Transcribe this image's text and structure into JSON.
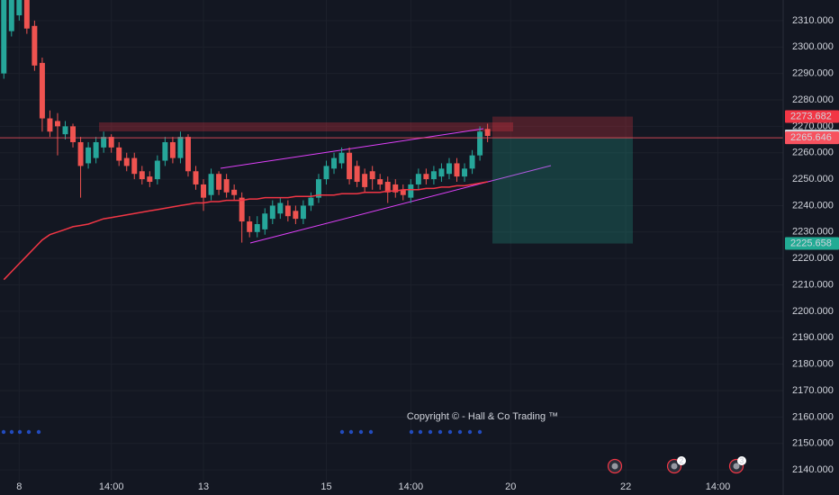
{
  "chart_data": {
    "type": "candlestick",
    "watermark": "Copyright © - Hall & Co Trading ™",
    "up_color": "#26a69a",
    "down_color": "#ef5350",
    "grid": true,
    "ylim": [
      2135.6,
      2317.8
    ],
    "yticks": [
      {
        "value": 2140,
        "label": "2140.000"
      },
      {
        "value": 2150,
        "label": "2150.000"
      },
      {
        "value": 2160,
        "label": "2160.000"
      },
      {
        "value": 2170,
        "label": "2170.000"
      },
      {
        "value": 2180,
        "label": "2180.000"
      },
      {
        "value": 2190,
        "label": "2190.000"
      },
      {
        "value": 2200,
        "label": "2200.000"
      },
      {
        "value": 2210,
        "label": "2210.000"
      },
      {
        "value": 2220,
        "label": "2220.000"
      },
      {
        "value": 2230,
        "label": "2230.000"
      },
      {
        "value": 2240,
        "label": "2240.000"
      },
      {
        "value": 2250,
        "label": "2250.000"
      },
      {
        "value": 2260,
        "label": "2260.000"
      },
      {
        "value": 2270,
        "label": "2270.000"
      },
      {
        "value": 2280,
        "label": "2280.000"
      },
      {
        "value": 2290,
        "label": "2290.000"
      },
      {
        "value": 2300,
        "label": "2300.000"
      },
      {
        "value": 2310,
        "label": "2310.000"
      }
    ],
    "categories": [
      null,
      null,
      "8",
      null,
      null,
      null,
      null,
      null,
      null,
      null,
      null,
      null,
      null,
      null,
      "14:00",
      null,
      null,
      null,
      null,
      null,
      null,
      null,
      null,
      null,
      null,
      null,
      "13",
      null,
      null,
      null,
      null,
      null,
      null,
      null,
      null,
      null,
      null,
      null,
      null,
      null,
      null,
      null,
      "15",
      null,
      null,
      null,
      null,
      null,
      null,
      null,
      null,
      null,
      null,
      "14:00",
      null,
      null,
      null,
      null,
      null,
      null,
      null,
      null,
      null,
      null,
      null,
      null,
      "20",
      null,
      null,
      null,
      null,
      null,
      null,
      null,
      null,
      null,
      null,
      null,
      null,
      null,
      null,
      "22",
      null,
      null,
      null,
      null,
      null,
      null,
      null,
      null,
      null,
      null,
      null,
      "14:00",
      null,
      null,
      null,
      null,
      null,
      null,
      null,
      null
    ],
    "open": [
      2290,
      2306,
      2312,
      2318,
      2308,
      2294,
      2273,
      2272,
      2267,
      2270,
      2264,
      2256,
      2258,
      2262,
      2266,
      2262,
      2258,
      2258,
      2253,
      2251,
      2250,
      2257,
      2264,
      2258,
      2266,
      2253,
      2248,
      2244,
      2252,
      2250,
      2246,
      2243,
      2234,
      2230,
      2231,
      2235,
      2237,
      2240,
      2238,
      2235,
      2240,
      2243,
      2250,
      2254,
      2256,
      2260,
      2255,
      2252,
      2253,
      2250,
      2249,
      2248,
      2246,
      2243,
      2248,
      2252,
      2250,
      2251,
      2252,
      2256,
      2251,
      2254,
      2259,
      2269,
      null,
      null,
      null,
      null,
      null,
      null,
      null,
      null,
      null,
      null,
      null,
      null,
      null,
      null,
      null,
      null,
      null,
      null,
      null,
      null,
      null,
      null,
      null,
      null,
      null,
      null,
      null,
      null,
      null,
      null,
      null,
      null,
      null,
      null,
      null,
      null,
      null,
      null
    ],
    "high": [
      2320,
      2320,
      2320,
      2320,
      2310,
      2296,
      2276,
      2275,
      2272,
      2271,
      2266,
      2264,
      2266,
      2268,
      2267,
      2264,
      2260,
      2260,
      2255,
      2253,
      2259,
      2266,
      2266,
      2268,
      2267,
      2255,
      2250,
      2254,
      2253,
      2252,
      2248,
      2245,
      2236,
      2236,
      2239,
      2242,
      2243,
      2242,
      2240,
      2242,
      2245,
      2252,
      2257,
      2260,
      2262,
      2262,
      2257,
      2254,
      2255,
      2252,
      2251,
      2250,
      2248,
      2250,
      2254,
      2254,
      2255,
      2256,
      2258,
      2258,
      2256,
      2261,
      2270,
      2271,
      null,
      null,
      null,
      null,
      null,
      null,
      null,
      null,
      null,
      null,
      null,
      null,
      null,
      null,
      null,
      null,
      null,
      null,
      null,
      null,
      null,
      null,
      null,
      null,
      null,
      null,
      null,
      null,
      null,
      null,
      null,
      null,
      null,
      null,
      null,
      null,
      null,
      null
    ],
    "low": [
      2288,
      2304,
      2310,
      2305,
      2291,
      2268,
      2266,
      2259,
      2265,
      2262,
      2243,
      2254,
      2256,
      2260,
      2260,
      2255,
      2253,
      2250,
      2248,
      2247,
      2248,
      2255,
      2256,
      2256,
      2251,
      2246,
      2238,
      2242,
      2244,
      2243,
      2242,
      2226,
      2228,
      2228,
      2229,
      2233,
      2235,
      2234,
      2233,
      2233,
      2238,
      2241,
      2248,
      2252,
      2254,
      2248,
      2247,
      2245,
      2246,
      2246,
      2241,
      2243,
      2242,
      2241,
      2246,
      2248,
      2248,
      2249,
      2250,
      2249,
      2249,
      2252,
      2257,
      2264,
      null,
      null,
      null,
      null,
      null,
      null,
      null,
      null,
      null,
      null,
      null,
      null,
      null,
      null,
      null,
      null,
      null,
      null,
      null,
      null,
      null,
      null,
      null,
      null,
      null,
      null,
      null,
      null,
      null,
      null,
      null,
      null,
      null,
      null,
      null,
      null,
      null,
      null
    ],
    "close": [
      2318,
      2318,
      2318,
      2307,
      2293,
      2273,
      2268,
      2270,
      2270,
      2264,
      2255,
      2262,
      2264,
      2266,
      2262,
      2257,
      2255,
      2252,
      2250,
      2249,
      2257,
      2264,
      2258,
      2266,
      2253,
      2248,
      2243,
      2252,
      2246,
      2245,
      2244,
      2234,
      2230,
      2233,
      2237,
      2240,
      2241,
      2236,
      2235,
      2240,
      2243,
      2250,
      2255,
      2258,
      2260,
      2250,
      2249,
      2247,
      2250,
      2248,
      2245,
      2245,
      2244,
      2248,
      2252,
      2250,
      2253,
      2254,
      2256,
      2251,
      2254,
      2259,
      2268,
      2266.374,
      null,
      null,
      null,
      null,
      null,
      null,
      null,
      null,
      null,
      null,
      null,
      null,
      null,
      null,
      null,
      null,
      null,
      null,
      null,
      null,
      null,
      null,
      null,
      null,
      null,
      null,
      null,
      null,
      null,
      null,
      null,
      null,
      null,
      null,
      null,
      null,
      null,
      null
    ],
    "overlay_line": {
      "color": "#f23645",
      "values": [
        2212,
        2215,
        2218,
        2221,
        2224,
        2227,
        2229,
        2230,
        2231,
        2232,
        2232.5,
        2233,
        2234,
        2235,
        2235.5,
        2236,
        2236.5,
        2237,
        2237.5,
        2238,
        2238.5,
        2239,
        2239.5,
        2240,
        2240.5,
        2241,
        2241,
        2241.5,
        2241.5,
        2242,
        2242,
        2242,
        2242.5,
        2242.5,
        2243,
        2243,
        2243,
        2243,
        2243.5,
        2243.5,
        2243.5,
        2244,
        2244,
        2244,
        2244.5,
        2244.5,
        2244.5,
        2245,
        2245,
        2245,
        2245.5,
        2245.5,
        2246,
        2246,
        2246,
        2246.5,
        2246.5,
        2247,
        2247,
        2247.5,
        2247.5,
        2248,
        2248.5,
        2249,
        null,
        null,
        null,
        null,
        null,
        null,
        null,
        null,
        null,
        null,
        null,
        null,
        null,
        null,
        null,
        null,
        null,
        null,
        null,
        null,
        null,
        null,
        null,
        null,
        null,
        null,
        null,
        null,
        null,
        null,
        null,
        null,
        null,
        null,
        null,
        null,
        null,
        null
      ]
    },
    "price_markers": [
      {
        "value": 2273.682,
        "color": "#f23645"
      },
      {
        "value": 2266.374,
        "color": "#d1d4dc"
      },
      {
        "value": 2265.646,
        "color": "#f7525f",
        "line": true
      },
      {
        "value": 2225.658,
        "color": "#22ab94"
      }
    ],
    "event_badges": [
      "2",
      "3"
    ]
  }
}
